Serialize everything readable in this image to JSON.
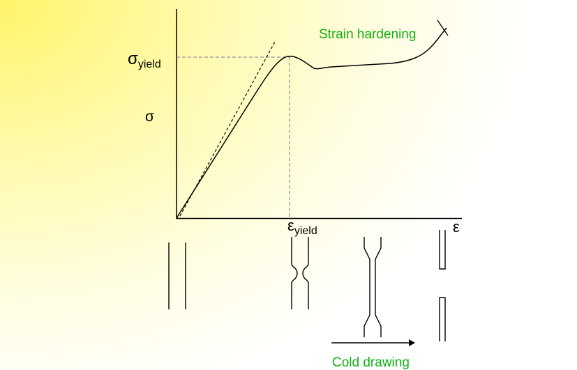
{
  "labels": {
    "sigma_yield_symbol": "σ",
    "sigma_yield_sub": "yield",
    "sigma_axis": "σ",
    "epsilon_yield_symbol": "ε",
    "epsilon_yield_sub": "yield",
    "epsilon_axis": "ε",
    "strain_hardening": "Strain hardening",
    "cold_drawing": "Cold drawing"
  },
  "colors": {
    "annotation": "#13b113",
    "line": "#000000",
    "guide": "#7a7a9a",
    "background_accent": "#fff46a"
  }
}
